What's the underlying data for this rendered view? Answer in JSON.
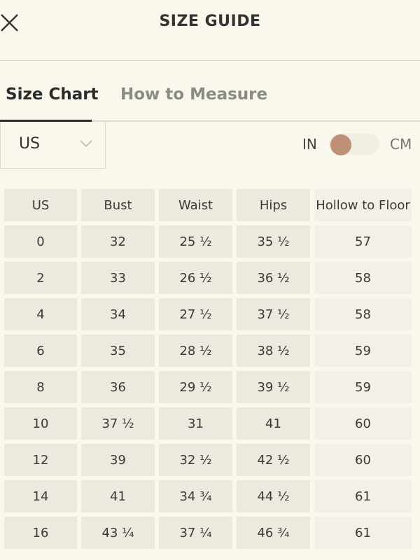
{
  "header": {
    "title": "SIZE GUIDE"
  },
  "tabs": [
    "Size Chart",
    "How to Measure"
  ],
  "selector": {
    "value": "US"
  },
  "toggle": {
    "left": "IN",
    "right": "CM"
  },
  "table": {
    "headers": [
      "US",
      "Bust",
      "Waist",
      "Hips",
      "Hollow to Floor"
    ],
    "rows": [
      [
        "0",
        "32",
        "25 ½",
        "35 ½",
        "57"
      ],
      [
        "2",
        "33",
        "26 ½",
        "36 ½",
        "58"
      ],
      [
        "4",
        "34",
        "27 ½",
        "37 ½",
        "58"
      ],
      [
        "6",
        "35",
        "28 ½",
        "38 ½",
        "59"
      ],
      [
        "8",
        "36",
        "29 ½",
        "39 ½",
        "59"
      ],
      [
        "10",
        "37 ½",
        "31",
        "41",
        "60"
      ],
      [
        "12",
        "39",
        "32 ½",
        "42 ½",
        "60"
      ],
      [
        "14",
        "41",
        "34 ¾",
        "44 ½",
        "61"
      ],
      [
        "16",
        "43 ¼",
        "37 ¼",
        "46 ¾",
        "61"
      ]
    ]
  }
}
